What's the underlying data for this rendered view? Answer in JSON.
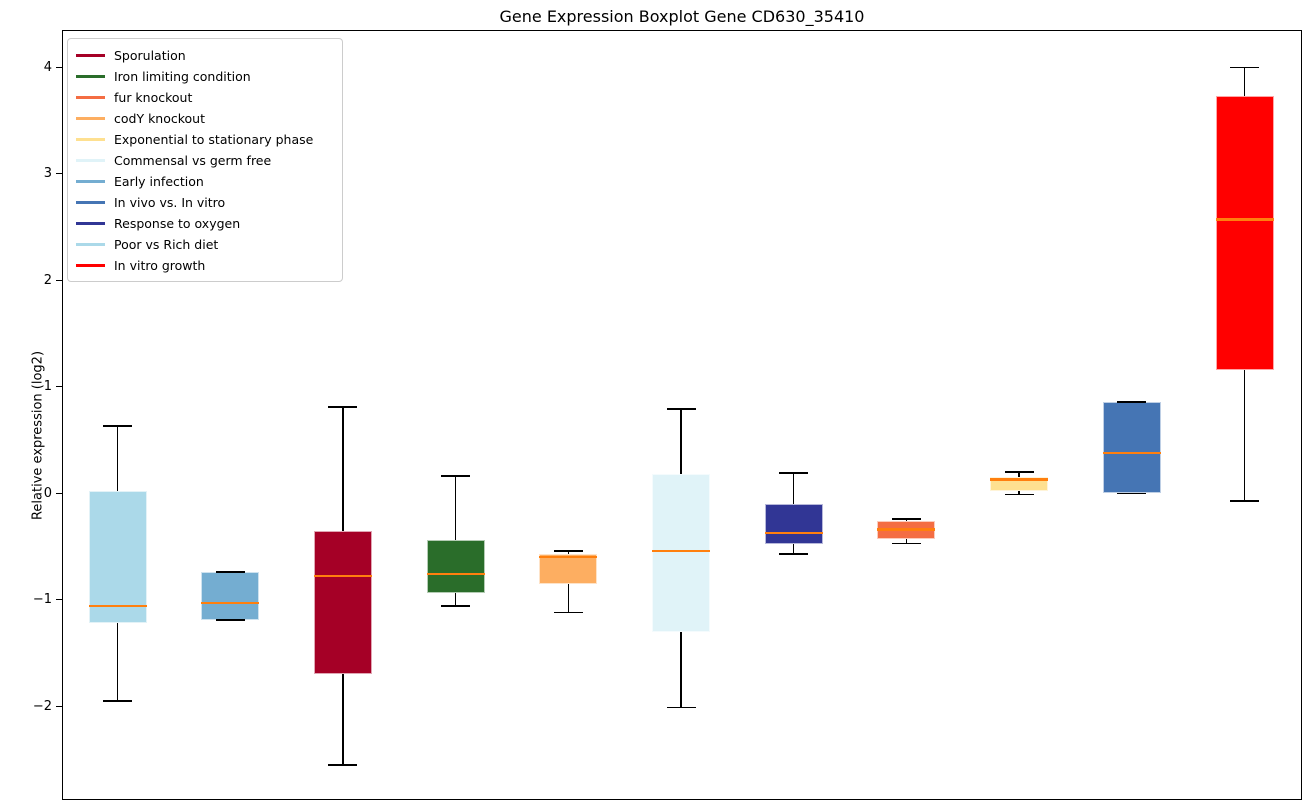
{
  "chart_data": {
    "type": "boxplot",
    "title": "Gene Expression Boxplot Gene CD630_35410",
    "xlabel": "",
    "ylabel": "Relative expression (log2)",
    "ylim": [
      -2.9,
      4.35
    ],
    "yticks": [
      4,
      3,
      2,
      1,
      0,
      -1,
      -2
    ],
    "ytick_labels": [
      "4",
      "3",
      "2",
      "1",
      "0",
      "−1",
      "−2"
    ],
    "grid": false,
    "legend_position": "upper-left",
    "median_color": "#ff7f0e",
    "whisker_color": "#000000",
    "legend": [
      {
        "label": "Sporulation",
        "color": "#a50026"
      },
      {
        "label": "Iron limiting condition",
        "color": "#2a6d2a"
      },
      {
        "label": "fur knockout",
        "color": "#f46d43"
      },
      {
        "label": "codY knockout",
        "color": "#fdae61"
      },
      {
        "label": "Exponential to stationary phase",
        "color": "#fee090"
      },
      {
        "label": "Commensal vs germ free",
        "color": "#e0f3f8"
      },
      {
        "label": "Early infection",
        "color": "#74add1"
      },
      {
        "label": "In vivo vs. In vitro",
        "color": "#4575b4"
      },
      {
        "label": "Response to oxygen",
        "color": "#313695"
      },
      {
        "label": "Poor vs Rich diet",
        "color": "#abd9e9"
      },
      {
        "label": "In vitro growth",
        "color": "#ff0000"
      }
    ],
    "series": [
      {
        "name": "Poor vs Rich diet",
        "color": "#abd9e9",
        "whisker_low": -1.95,
        "q1": -1.22,
        "median": -1.06,
        "q3": 0.02,
        "whisker_high": 0.63
      },
      {
        "name": "Early infection",
        "color": "#74add1",
        "whisker_low": -1.19,
        "q1": -1.19,
        "median": -1.03,
        "q3": -0.74,
        "whisker_high": -0.74
      },
      {
        "name": "Sporulation",
        "color": "#a50026",
        "whisker_low": -2.55,
        "q1": -1.7,
        "median": -0.78,
        "q3": -0.35,
        "whisker_high": 0.81
      },
      {
        "name": "Iron limiting condition",
        "color": "#2a6d2a",
        "whisker_low": -1.06,
        "q1": -0.94,
        "median": -0.76,
        "q3": -0.44,
        "whisker_high": 0.16
      },
      {
        "name": "codY knockout",
        "color": "#fdae61",
        "whisker_low": -1.12,
        "q1": -0.85,
        "median": -0.6,
        "q3": -0.57,
        "whisker_high": -0.54
      },
      {
        "name": "Commensal vs germ free",
        "color": "#e0f3f8",
        "whisker_low": -2.01,
        "q1": -1.3,
        "median": -0.54,
        "q3": 0.18,
        "whisker_high": 0.79
      },
      {
        "name": "Response to oxygen",
        "color": "#313695",
        "whisker_low": -0.57,
        "q1": -0.48,
        "median": -0.37,
        "q3": -0.1,
        "whisker_high": 0.19
      },
      {
        "name": "fur knockout",
        "color": "#f46d43",
        "whisker_low": -0.47,
        "q1": -0.43,
        "median": -0.34,
        "q3": -0.26,
        "whisker_high": -0.24
      },
      {
        "name": "Exponential to stationary phase",
        "color": "#fee090",
        "whisker_low": -0.01,
        "q1": 0.02,
        "median": 0.13,
        "q3": 0.15,
        "whisker_high": 0.2
      },
      {
        "name": "In vivo vs. In vitro",
        "color": "#4575b4",
        "whisker_low": 0.0,
        "q1": 0.0,
        "median": 0.38,
        "q3": 0.86,
        "whisker_high": 0.86
      },
      {
        "name": "In vitro growth",
        "color": "#ff0000",
        "whisker_low": -0.07,
        "q1": 1.16,
        "median": 2.57,
        "q3": 3.73,
        "whisker_high": 4.0
      }
    ]
  }
}
